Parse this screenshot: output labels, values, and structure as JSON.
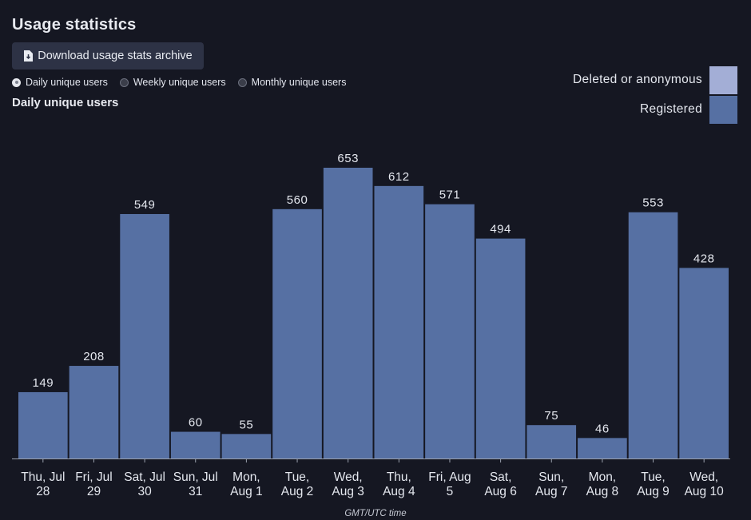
{
  "page": {
    "title": "Usage statistics",
    "download_label": "Download usage stats archive"
  },
  "range_options": [
    {
      "label": "Daily unique users",
      "selected": true
    },
    {
      "label": "Weekly unique users",
      "selected": false
    },
    {
      "label": "Monthly unique users",
      "selected": false
    }
  ],
  "colors": {
    "registered": "#5670a3",
    "deleted": "#a3aed6",
    "background": "#151722",
    "axis": "#9aa0ad"
  },
  "chart_data": {
    "type": "bar",
    "title": "Daily unique users",
    "xlabel": "GMT/UTC time",
    "ylabel": "",
    "ylim": [
      0,
      653
    ],
    "legend_position": "top-right",
    "grid": false,
    "categories": [
      [
        "Thu, Jul",
        "28"
      ],
      [
        "Fri, Jul",
        "29"
      ],
      [
        "Sat, Jul",
        "30"
      ],
      [
        "Sun, Jul",
        "31"
      ],
      [
        "Mon,",
        "Aug 1"
      ],
      [
        "Tue,",
        "Aug 2"
      ],
      [
        "Wed,",
        "Aug 3"
      ],
      [
        "Thu,",
        "Aug 4"
      ],
      [
        "Fri, Aug",
        "5"
      ],
      [
        "Sat,",
        "Aug 6"
      ],
      [
        "Sun,",
        "Aug 7"
      ],
      [
        "Mon,",
        "Aug 8"
      ],
      [
        "Tue,",
        "Aug 9"
      ],
      [
        "Wed,",
        "Aug 10"
      ]
    ],
    "series": [
      {
        "name": "Deleted or anonymous",
        "values": [
          0,
          0,
          0,
          0,
          0,
          0,
          0,
          0,
          0,
          0,
          0,
          0,
          0,
          0
        ]
      },
      {
        "name": "Registered",
        "values": [
          149,
          208,
          549,
          60,
          55,
          560,
          653,
          612,
          571,
          494,
          75,
          46,
          553,
          428
        ]
      }
    ],
    "totals": [
      149,
      208,
      549,
      60,
      55,
      560,
      653,
      612,
      571,
      494,
      75,
      46,
      553,
      428
    ]
  }
}
